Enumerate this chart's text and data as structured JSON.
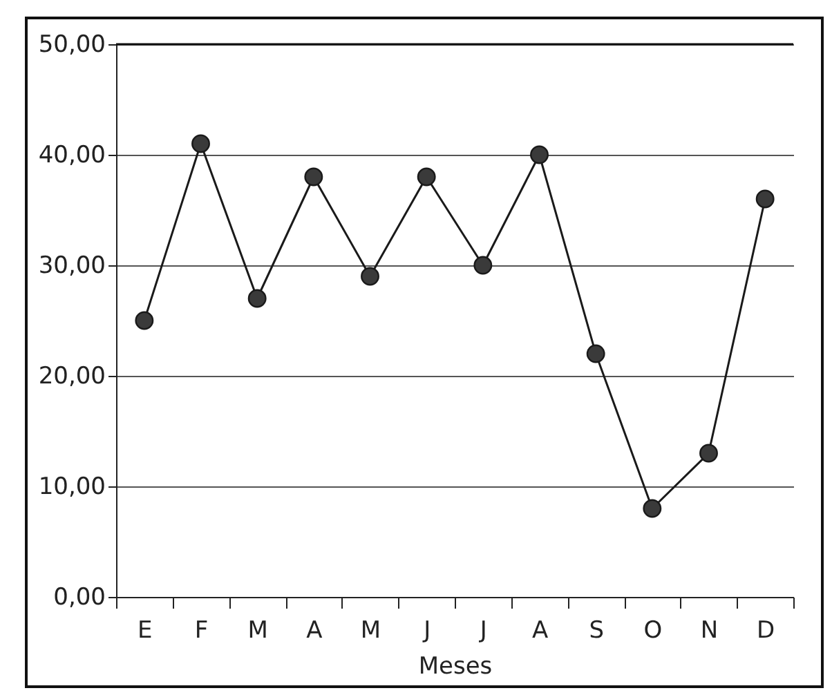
{
  "chart_data": {
    "type": "line",
    "xlabel": "Meses",
    "categories": [
      "E",
      "F",
      "M",
      "A",
      "M",
      "J",
      "J",
      "A",
      "S",
      "O",
      "N",
      "D"
    ],
    "series": [
      {
        "color": "#1a1a1a",
        "values": [
          25,
          41,
          27,
          38,
          29,
          38,
          30,
          40,
          22,
          8,
          13,
          36
        ]
      }
    ],
    "ylim": [
      0,
      50
    ],
    "yticks": [
      {
        "value": 0,
        "label": "0,00"
      },
      {
        "value": 10,
        "label": "10,00"
      },
      {
        "value": 20,
        "label": "20,00"
      },
      {
        "value": 30,
        "label": "30,00"
      },
      {
        "value": 40,
        "label": "40,00"
      },
      {
        "value": 50,
        "label": "50,00"
      }
    ],
    "grid": "y",
    "marker": "circle"
  }
}
